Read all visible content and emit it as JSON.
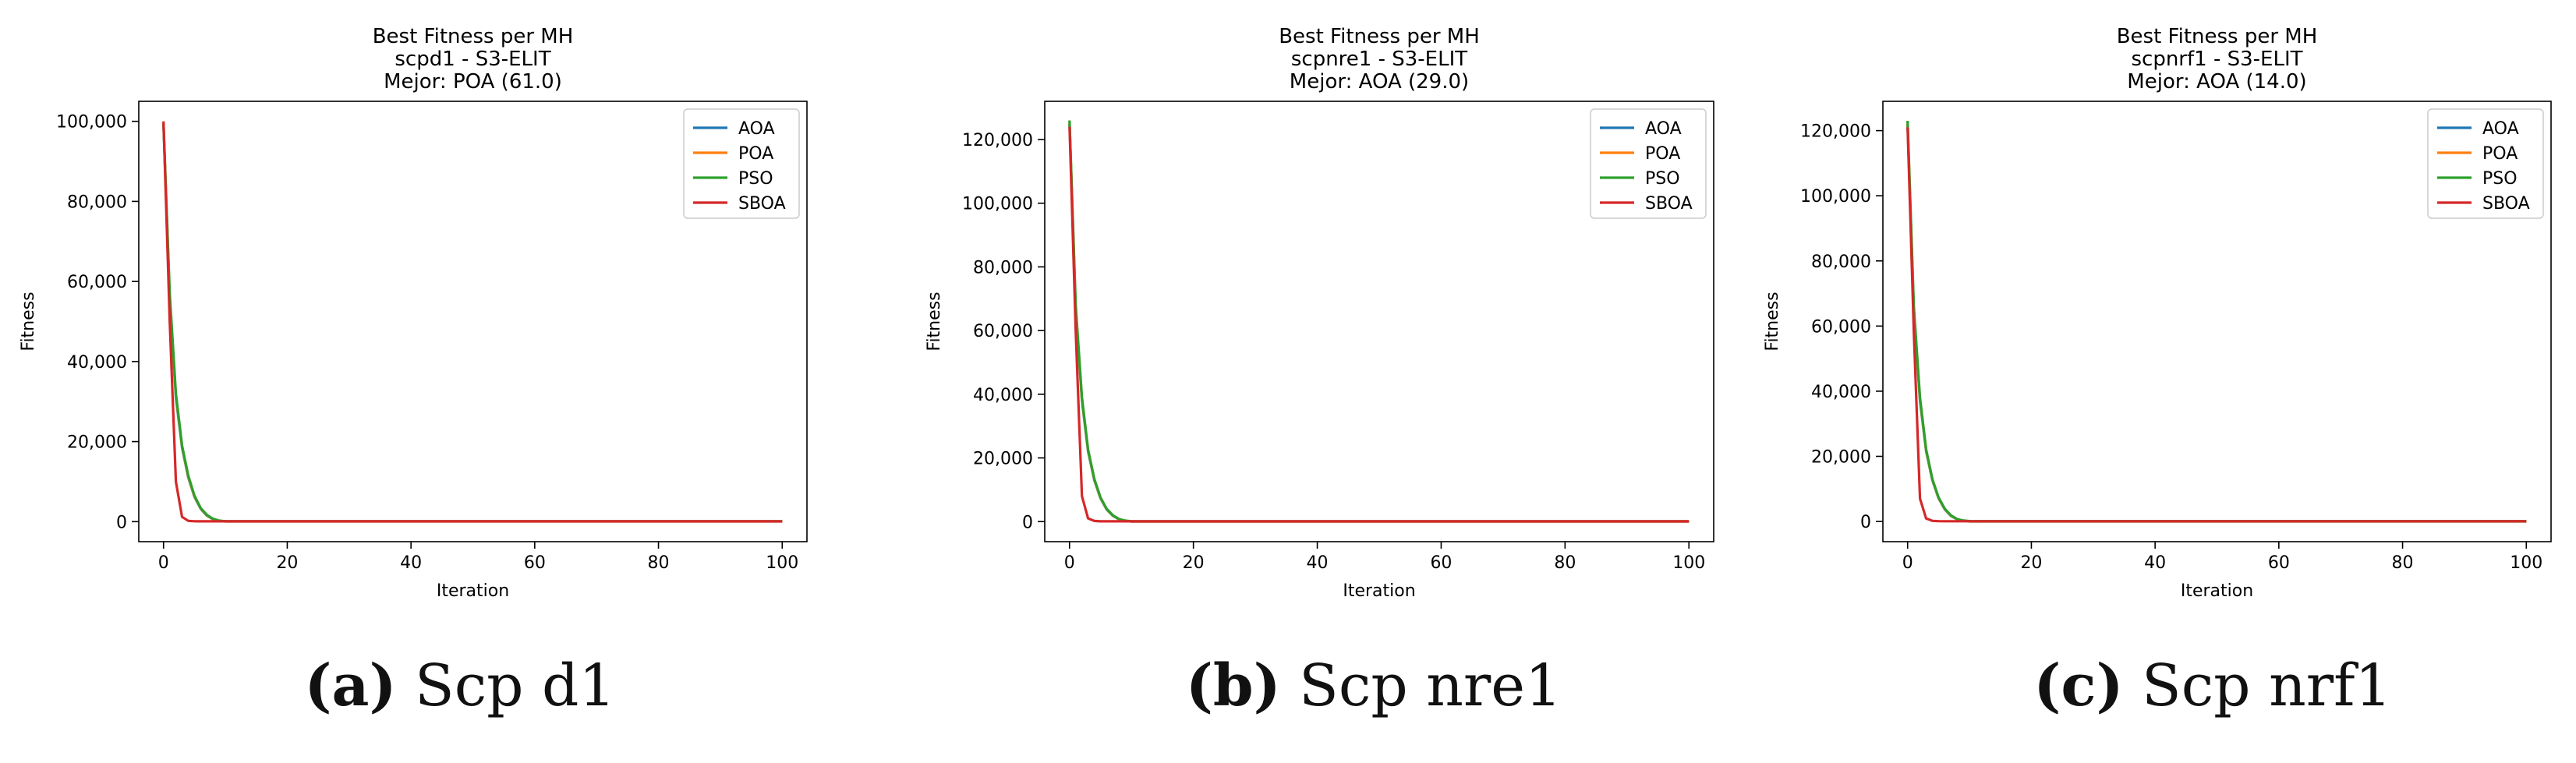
{
  "chart_data": [
    {
      "type": "line",
      "title": "Best Fitness per MH",
      "subtitle": "scpd1 - S3-ELIT",
      "best": "Mejor: POA (61.0)",
      "xlabel": "Iteration",
      "ylabel": "Fitness",
      "xlim": [
        -4,
        104
      ],
      "ylim": [
        -5000,
        105000
      ],
      "xticks": [
        0,
        20,
        40,
        60,
        80,
        100
      ],
      "yticks": [
        0,
        20000,
        40000,
        60000,
        80000,
        100000
      ],
      "ytick_labels": [
        "0",
        "20,000",
        "40,000",
        "60,000",
        "80,000",
        "100,000"
      ],
      "grid": false,
      "legend_position": "top-right",
      "series": [
        {
          "name": "AOA",
          "color": "#1f77b4",
          "x": [
            0,
            1,
            2,
            3,
            4,
            5,
            6,
            7,
            8,
            9,
            10,
            12,
            15,
            100
          ],
          "y": [
            99000,
            55000,
            31000,
            18500,
            11000,
            6200,
            3200,
            1500,
            600,
            200,
            61,
            61,
            61,
            61
          ]
        },
        {
          "name": "POA",
          "color": "#ff7f0e",
          "x": [
            0,
            1,
            2,
            3,
            4,
            5,
            6,
            7,
            8,
            9,
            10,
            12,
            15,
            100
          ],
          "y": [
            99500,
            56000,
            31500,
            18800,
            11200,
            6300,
            3300,
            1600,
            650,
            220,
            61,
            61,
            61,
            61
          ]
        },
        {
          "name": "PSO",
          "color": "#2ca02c",
          "x": [
            0,
            1,
            2,
            3,
            4,
            5,
            6,
            7,
            8,
            9,
            10,
            12,
            15,
            100
          ],
          "y": [
            99500,
            57000,
            32000,
            19000,
            11500,
            6500,
            3400,
            1700,
            700,
            250,
            100,
            90,
            80,
            80
          ]
        },
        {
          "name": "SBOA",
          "color": "#d62728",
          "x": [
            0,
            1,
            2,
            3,
            4,
            5,
            6,
            100
          ],
          "y": [
            100000,
            50000,
            10000,
            1200,
            200,
            100,
            90,
            90
          ]
        }
      ]
    },
    {
      "type": "line",
      "title": "Best Fitness per MH",
      "subtitle": "scpnre1 - S3-ELIT",
      "best": "Mejor: AOA (29.0)",
      "xlabel": "Iteration",
      "ylabel": "Fitness",
      "xlim": [
        -4,
        104
      ],
      "ylim": [
        -6300,
        132000
      ],
      "xticks": [
        0,
        20,
        40,
        60,
        80,
        100
      ],
      "yticks": [
        0,
        20000,
        40000,
        60000,
        80000,
        100000,
        120000
      ],
      "ytick_labels": [
        "0",
        "20,000",
        "40,000",
        "60,000",
        "80,000",
        "100,000",
        "120,000"
      ],
      "grid": false,
      "legend_position": "top-right",
      "series": [
        {
          "name": "AOA",
          "color": "#1f77b4",
          "x": [
            0,
            1,
            2,
            3,
            4,
            5,
            6,
            7,
            8,
            9,
            10,
            12,
            15,
            100
          ],
          "y": [
            125000,
            66000,
            38000,
            22000,
            13000,
            7300,
            3800,
            1800,
            700,
            250,
            29,
            29,
            29,
            29
          ]
        },
        {
          "name": "POA",
          "color": "#ff7f0e",
          "x": [
            0,
            1,
            2,
            3,
            4,
            5,
            6,
            7,
            8,
            9,
            10,
            12,
            15,
            100
          ],
          "y": [
            125500,
            67000,
            38500,
            22300,
            13200,
            7400,
            3900,
            1900,
            750,
            270,
            40,
            40,
            40,
            40
          ]
        },
        {
          "name": "PSO",
          "color": "#2ca02c",
          "x": [
            0,
            1,
            2,
            3,
            4,
            5,
            6,
            7,
            8,
            9,
            10,
            12,
            15,
            100
          ],
          "y": [
            126000,
            68000,
            39000,
            22600,
            13400,
            7600,
            4000,
            2000,
            800,
            300,
            120,
            100,
            90,
            90
          ]
        },
        {
          "name": "SBOA",
          "color": "#d62728",
          "x": [
            0,
            1,
            2,
            3,
            4,
            5,
            6,
            100
          ],
          "y": [
            124000,
            60000,
            8000,
            1000,
            200,
            100,
            80,
            80
          ]
        }
      ]
    },
    {
      "type": "line",
      "title": "Best Fitness per MH",
      "subtitle": "scpnrf1 - S3-ELIT",
      "best": "Mejor: AOA (14.0)",
      "xlabel": "Iteration",
      "ylabel": "Fitness",
      "xlim": [
        -4,
        104
      ],
      "ylim": [
        -6200,
        129000
      ],
      "xticks": [
        0,
        20,
        40,
        60,
        80,
        100
      ],
      "yticks": [
        0,
        20000,
        40000,
        60000,
        80000,
        100000,
        120000
      ],
      "ytick_labels": [
        "0",
        "20,000",
        "40,000",
        "60,000",
        "80,000",
        "100,000",
        "120,000"
      ],
      "grid": false,
      "legend_position": "top-right",
      "series": [
        {
          "name": "AOA",
          "color": "#1f77b4",
          "x": [
            0,
            1,
            2,
            3,
            4,
            5,
            6,
            7,
            8,
            9,
            10,
            12,
            15,
            100
          ],
          "y": [
            122000,
            64000,
            37000,
            21500,
            12600,
            7100,
            3700,
            1700,
            650,
            230,
            14,
            14,
            14,
            14
          ]
        },
        {
          "name": "POA",
          "color": "#ff7f0e",
          "x": [
            0,
            1,
            2,
            3,
            4,
            5,
            6,
            7,
            8,
            9,
            10,
            12,
            15,
            100
          ],
          "y": [
            122500,
            65000,
            37500,
            21800,
            12800,
            7200,
            3800,
            1800,
            700,
            250,
            30,
            30,
            30,
            30
          ]
        },
        {
          "name": "PSO",
          "color": "#2ca02c",
          "x": [
            0,
            1,
            2,
            3,
            4,
            5,
            6,
            7,
            8,
            9,
            10,
            12,
            15,
            100
          ],
          "y": [
            123000,
            66000,
            38000,
            22100,
            13000,
            7400,
            3900,
            1900,
            750,
            280,
            110,
            95,
            85,
            85
          ]
        },
        {
          "name": "SBOA",
          "color": "#d62728",
          "x": [
            0,
            1,
            2,
            3,
            4,
            5,
            6,
            100
          ],
          "y": [
            121000,
            58000,
            7000,
            900,
            200,
            90,
            70,
            70
          ]
        }
      ]
    }
  ],
  "captions": [
    {
      "letter": "(a)",
      "text": " Scp d1"
    },
    {
      "letter": "(b)",
      "text": " Scp nre1"
    },
    {
      "letter": "(c)",
      "text": " Scp nrf1"
    }
  ]
}
